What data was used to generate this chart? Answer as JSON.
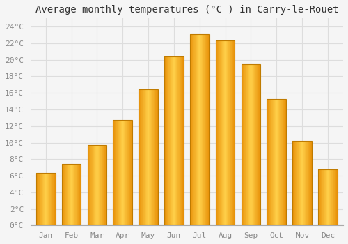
{
  "title": "Average monthly temperatures (°C ) in Carry-le-Rouet",
  "months": [
    "Jan",
    "Feb",
    "Mar",
    "Apr",
    "May",
    "Jun",
    "Jul",
    "Aug",
    "Sep",
    "Oct",
    "Nov",
    "Dec"
  ],
  "values": [
    6.3,
    7.4,
    9.7,
    12.7,
    16.4,
    20.4,
    23.1,
    22.3,
    19.5,
    15.3,
    10.2,
    6.8
  ],
  "bar_color_center": "#FFD04A",
  "bar_color_edge": "#E8920A",
  "bar_border_color": "#BF7B00",
  "ylim": [
    0,
    25
  ],
  "yticks": [
    0,
    2,
    4,
    6,
    8,
    10,
    12,
    14,
    16,
    18,
    20,
    22,
    24
  ],
  "background_color": "#F5F5F5",
  "plot_bg_color": "#F5F5F5",
  "grid_color": "#DDDDDD",
  "title_fontsize": 10,
  "tick_fontsize": 8,
  "font_family": "monospace",
  "tick_color": "#888888"
}
